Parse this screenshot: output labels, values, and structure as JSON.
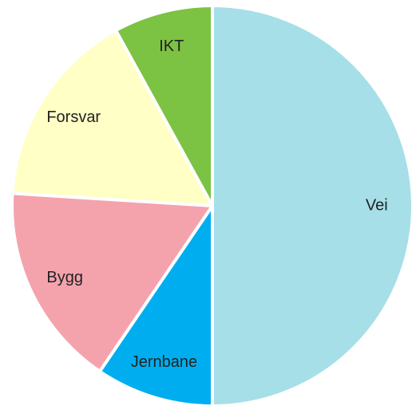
{
  "chart_data": {
    "type": "pie",
    "categories": [
      "Vei",
      "Jernbane",
      "Bygg",
      "Forsvar",
      "IKT"
    ],
    "values": [
      50,
      9.5,
      16.5,
      16,
      8
    ],
    "colors": [
      "#a6dfe8",
      "#00aeef",
      "#f4a3ad",
      "#ffffc6",
      "#7cc243"
    ]
  }
}
